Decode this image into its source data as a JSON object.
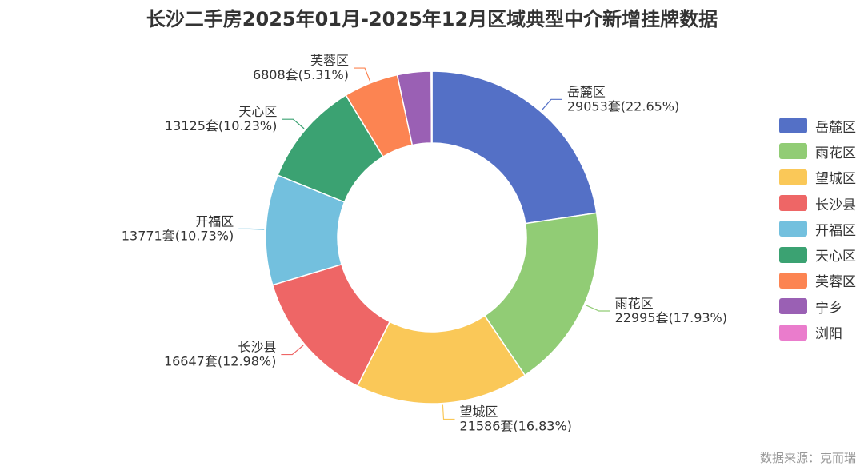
{
  "title": "长沙二手房2025年01月-2025年12月区域典型中介新增挂牌数据",
  "source": "数据来源：克而瑞",
  "chart_data": {
    "type": "pie",
    "subtype": "donut",
    "unit": "套",
    "legend_position": "right",
    "categories": [
      "岳麓区",
      "雨花区",
      "望城区",
      "长沙县",
      "开福区",
      "天心区",
      "芙蓉区",
      "宁乡",
      "浏阳"
    ],
    "values": [
      29053,
      22995,
      21586,
      16647,
      13771,
      13125,
      6808,
      4200,
      100
    ],
    "percent_labels": [
      "22.65%",
      "17.93%",
      "16.83%",
      "12.98%",
      "10.73%",
      "10.23%",
      "5.31%",
      "",
      ""
    ],
    "value_labels": [
      "29053套(22.65%)",
      "22995套(17.93%)",
      "21586套(16.83%)",
      "16647套(12.98%)",
      "13771套(10.73%)",
      "13125套(10.23%)",
      "6808套(5.31%)",
      "",
      ""
    ],
    "colors": [
      "#5470c6",
      "#91cc75",
      "#fac858",
      "#ee6666",
      "#73c0de",
      "#3ba272",
      "#fc8452",
      "#9a60b4",
      "#ea7ccc"
    ]
  }
}
